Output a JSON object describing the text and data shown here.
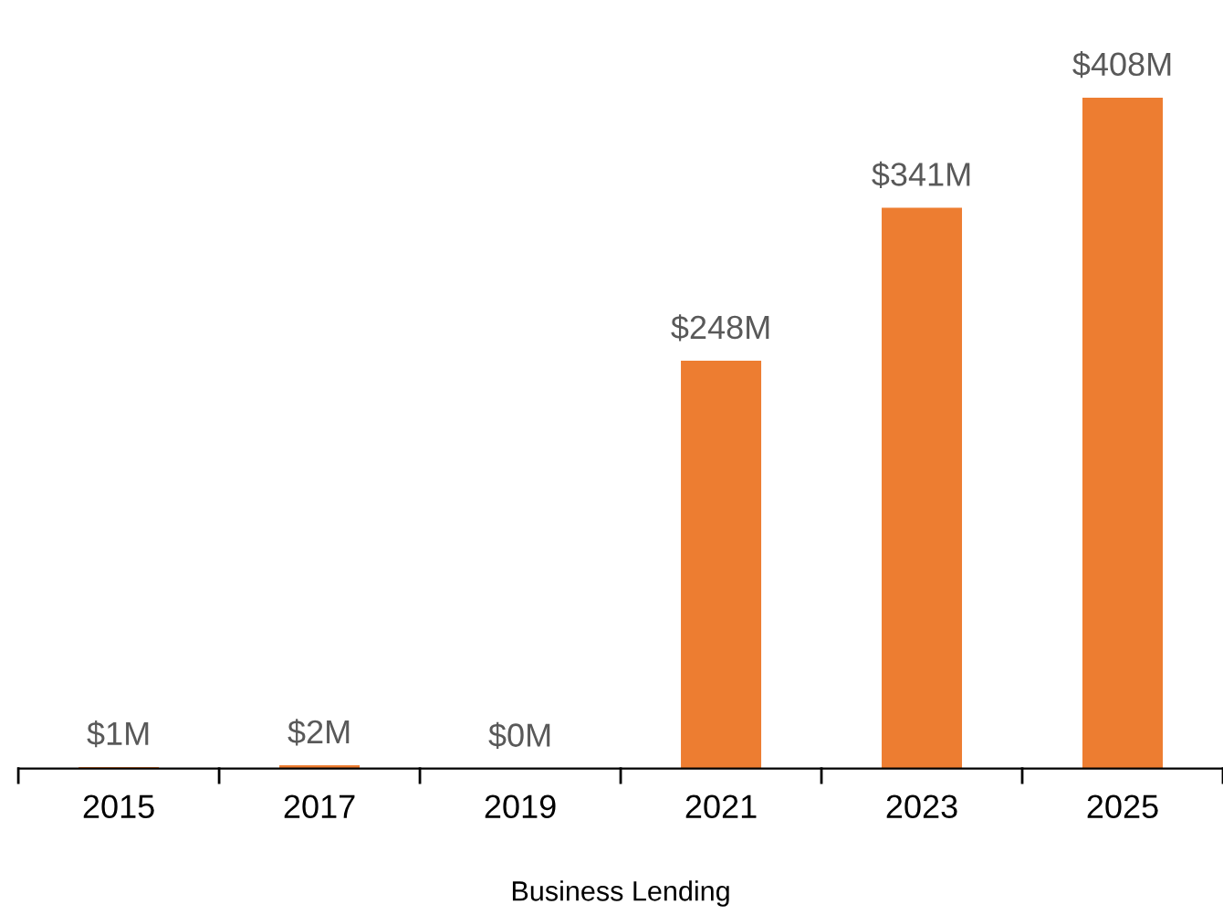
{
  "chart_data": {
    "type": "bar",
    "xlabel": "Business Lending",
    "categories": [
      "2015",
      "2017",
      "2019",
      "2021",
      "2023",
      "2025"
    ],
    "values": [
      1,
      2,
      0,
      248,
      341,
      408
    ],
    "value_labels": [
      "$1M",
      "$2M",
      "$0M",
      "$248M",
      "$341M",
      "$408M"
    ],
    "color": "#ed7d31",
    "grid": false,
    "legend": false
  }
}
